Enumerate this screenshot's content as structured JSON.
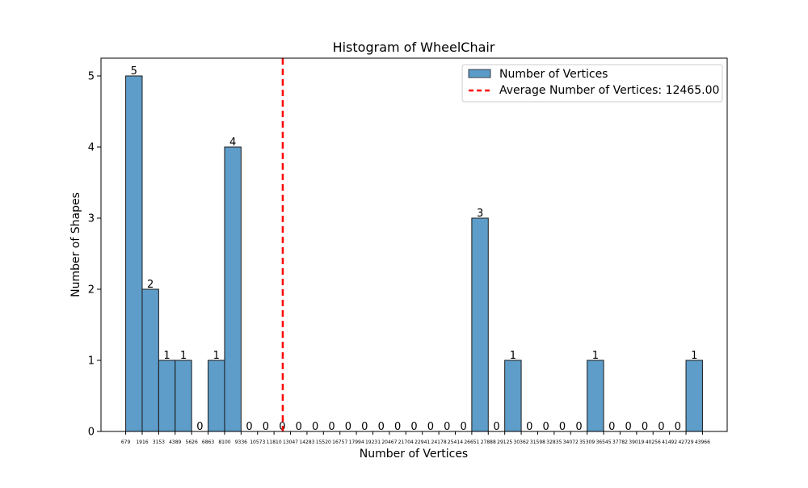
{
  "chart_data": {
    "type": "bar",
    "title": "Histogram of WheelChair",
    "xlabel": "Number of Vertices",
    "ylabel": "Number of Shapes",
    "ylim": [
      0,
      5.25
    ],
    "yticks": [
      0,
      1,
      2,
      3,
      4,
      5
    ],
    "bin_edges": [
      679,
      1916,
      3153,
      4389,
      5626,
      6863,
      8100,
      9336,
      10573,
      11810,
      13047,
      14283,
      15520,
      16757,
      17994,
      19231,
      20467,
      21704,
      22941,
      24178,
      25414,
      26651,
      27888,
      29125,
      30362,
      31598,
      32835,
      34072,
      35309,
      36545,
      37782,
      39019,
      40256,
      41492,
      42729,
      43966
    ],
    "values": [
      5,
      2,
      1,
      1,
      0,
      1,
      4,
      0,
      0,
      0,
      0,
      0,
      0,
      0,
      0,
      0,
      0,
      0,
      0,
      0,
      0,
      3,
      0,
      1,
      0,
      0,
      0,
      0,
      1,
      0,
      0,
      0,
      0,
      0,
      1
    ],
    "series": [
      {
        "name": "Number of Vertices",
        "color": "#5b9bc8"
      }
    ],
    "average": {
      "value": 12465.0,
      "label": "Average Number of Vertices: 12465.00",
      "color": "#ff0000"
    },
    "legend_position": "top-right",
    "grid": false
  }
}
